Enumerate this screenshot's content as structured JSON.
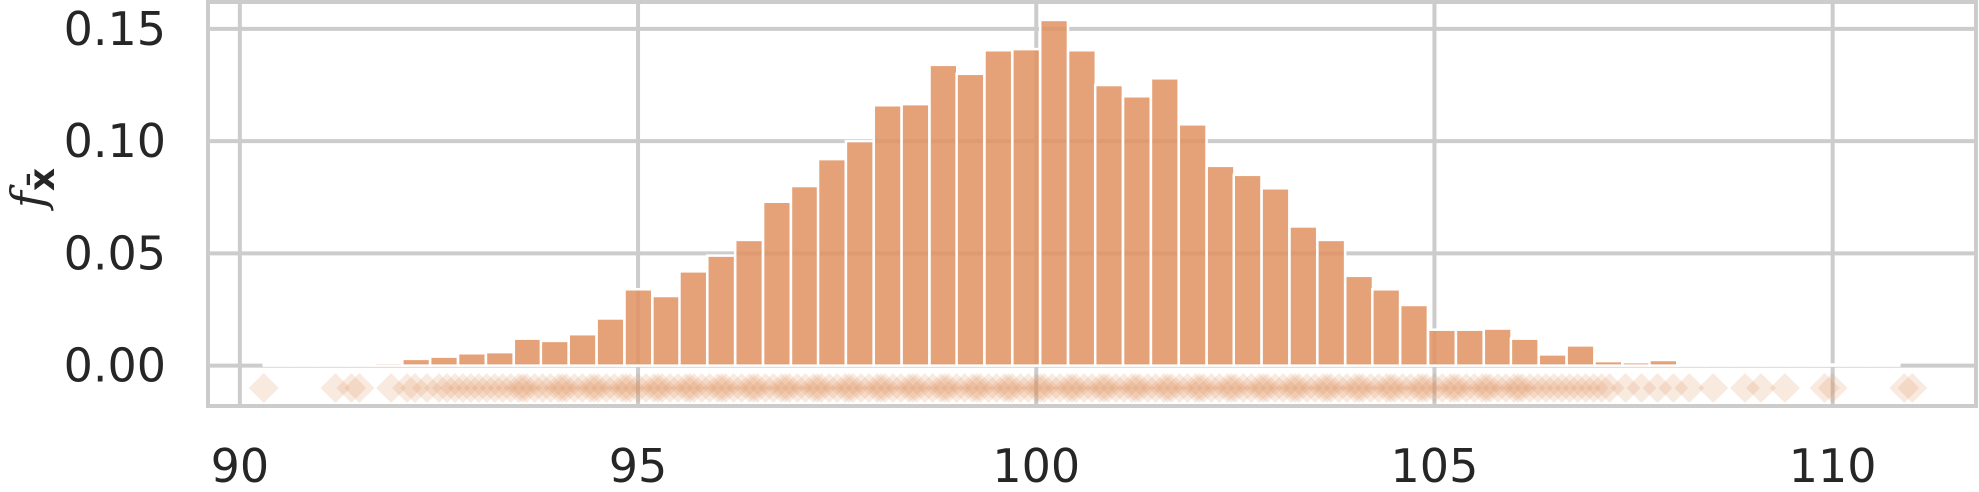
{
  "chart_data": {
    "type": "bar",
    "title": "",
    "xlabel": "",
    "ylabel": "f",
    "ylabel_subscript": "x̄",
    "xlim": [
      89.6,
      111.8
    ],
    "ylim": [
      -0.018,
      0.162
    ],
    "x_ticks": [
      90,
      95,
      100,
      105,
      110
    ],
    "y_ticks": [
      0.0,
      0.05,
      0.1,
      0.15
    ],
    "x_tick_labels": [
      "90",
      "95",
      "100",
      "105",
      "110"
    ],
    "y_tick_labels": [
      "0.00",
      "0.05",
      "0.10",
      "0.15"
    ],
    "grid": true,
    "colors": {
      "bar": "#e0915f",
      "marker": "#de8a55",
      "grid": "#cccccc",
      "text": "#262626"
    },
    "histogram": {
      "bin_width": 0.348,
      "bins": [
        {
          "x0": 90.3,
          "value": 0.0005
        },
        {
          "x0": 90.65,
          "value": 0.0005
        },
        {
          "x0": 91.0,
          "value": 0.0005
        },
        {
          "x0": 91.35,
          "value": 0.0005
        },
        {
          "x0": 91.7,
          "value": 0.0012
        },
        {
          "x0": 92.04,
          "value": 0.003
        },
        {
          "x0": 92.39,
          "value": 0.004
        },
        {
          "x0": 92.74,
          "value": 0.0055
        },
        {
          "x0": 93.09,
          "value": 0.006
        },
        {
          "x0": 93.44,
          "value": 0.012
        },
        {
          "x0": 93.78,
          "value": 0.011
        },
        {
          "x0": 94.13,
          "value": 0.014
        },
        {
          "x0": 94.48,
          "value": 0.021
        },
        {
          "x0": 94.83,
          "value": 0.034
        },
        {
          "x0": 95.18,
          "value": 0.031
        },
        {
          "x0": 95.52,
          "value": 0.042
        },
        {
          "x0": 95.87,
          "value": 0.049
        },
        {
          "x0": 96.22,
          "value": 0.056
        },
        {
          "x0": 96.57,
          "value": 0.073
        },
        {
          "x0": 96.92,
          "value": 0.08
        },
        {
          "x0": 97.26,
          "value": 0.092
        },
        {
          "x0": 97.61,
          "value": 0.1
        },
        {
          "x0": 97.96,
          "value": 0.116
        },
        {
          "x0": 98.31,
          "value": 0.1165
        },
        {
          "x0": 98.66,
          "value": 0.134
        },
        {
          "x0": 99.0,
          "value": 0.13
        },
        {
          "x0": 99.35,
          "value": 0.1405
        },
        {
          "x0": 99.7,
          "value": 0.141
        },
        {
          "x0": 100.05,
          "value": 0.154
        },
        {
          "x0": 100.4,
          "value": 0.1405
        },
        {
          "x0": 100.74,
          "value": 0.125
        },
        {
          "x0": 101.09,
          "value": 0.12
        },
        {
          "x0": 101.44,
          "value": 0.128
        },
        {
          "x0": 101.79,
          "value": 0.1075
        },
        {
          "x0": 102.14,
          "value": 0.089
        },
        {
          "x0": 102.48,
          "value": 0.085
        },
        {
          "x0": 102.83,
          "value": 0.079
        },
        {
          "x0": 103.18,
          "value": 0.062
        },
        {
          "x0": 103.53,
          "value": 0.056
        },
        {
          "x0": 103.88,
          "value": 0.04
        },
        {
          "x0": 104.22,
          "value": 0.034
        },
        {
          "x0": 104.57,
          "value": 0.027
        },
        {
          "x0": 104.92,
          "value": 0.016
        },
        {
          "x0": 105.27,
          "value": 0.016
        },
        {
          "x0": 105.62,
          "value": 0.0165
        },
        {
          "x0": 105.96,
          "value": 0.012
        },
        {
          "x0": 106.31,
          "value": 0.005
        },
        {
          "x0": 106.66,
          "value": 0.009
        },
        {
          "x0": 107.01,
          "value": 0.002
        },
        {
          "x0": 107.36,
          "value": 0.0015
        },
        {
          "x0": 107.7,
          "value": 0.0025
        },
        {
          "x0": 108.05,
          "value": 0.0005
        },
        {
          "x0": 108.4,
          "value": 0.0005
        },
        {
          "x0": 108.75,
          "value": 0.0005
        },
        {
          "x0": 109.1,
          "value": 0.0005
        },
        {
          "x0": 109.44,
          "value": 0.0005
        },
        {
          "x0": 109.79,
          "value": 0.0005
        },
        {
          "x0": 110.14,
          "value": 0.0005
        },
        {
          "x0": 110.49,
          "value": 0.0005
        }
      ]
    },
    "rug": {
      "y": -0.01,
      "marker": "diamond",
      "opacity": 0.18,
      "x": [
        90.3,
        91.2,
        91.4,
        91.5,
        91.9,
        92.1,
        92.2,
        92.35,
        92.5,
        92.6,
        92.7,
        92.8,
        92.9,
        93.0,
        93.1,
        93.2,
        93.3,
        93.4,
        93.5,
        93.55,
        93.6,
        93.7,
        93.8,
        93.9,
        94.0,
        94.05,
        94.1,
        94.2,
        94.3,
        94.4,
        94.45,
        94.5,
        94.6,
        94.7,
        94.8,
        94.85,
        94.9,
        95.0,
        95.1,
        95.2,
        95.25,
        95.3,
        95.4,
        95.5,
        95.6,
        95.65,
        95.7,
        95.8,
        95.9,
        96.0,
        96.05,
        96.1,
        96.2,
        96.3,
        96.4,
        96.45,
        96.5,
        96.6,
        96.7,
        96.8,
        96.85,
        96.9,
        97.0,
        97.1,
        97.2,
        97.25,
        97.3,
        97.4,
        97.5,
        97.6,
        97.65,
        97.7,
        97.8,
        97.9,
        98.0,
        98.05,
        98.1,
        98.2,
        98.3,
        98.4,
        98.45,
        98.5,
        98.6,
        98.7,
        98.8,
        98.85,
        98.9,
        99.0,
        99.1,
        99.2,
        99.25,
        99.3,
        99.4,
        99.5,
        99.6,
        99.65,
        99.7,
        99.8,
        99.9,
        100.0,
        100.05,
        100.1,
        100.2,
        100.3,
        100.4,
        100.45,
        100.5,
        100.6,
        100.7,
        100.8,
        100.85,
        100.9,
        101.0,
        101.1,
        101.2,
        101.25,
        101.3,
        101.4,
        101.5,
        101.6,
        101.65,
        101.7,
        101.8,
        101.9,
        102.0,
        102.05,
        102.1,
        102.2,
        102.3,
        102.4,
        102.45,
        102.5,
        102.6,
        102.7,
        102.8,
        102.85,
        102.9,
        103.0,
        103.1,
        103.2,
        103.25,
        103.3,
        103.4,
        103.5,
        103.6,
        103.65,
        103.7,
        103.8,
        103.9,
        104.0,
        104.05,
        104.1,
        104.2,
        104.3,
        104.4,
        104.45,
        104.5,
        104.6,
        104.7,
        104.8,
        104.85,
        104.9,
        105.0,
        105.1,
        105.2,
        105.25,
        105.3,
        105.4,
        105.5,
        105.6,
        105.65,
        105.7,
        105.8,
        105.9,
        106.0,
        106.05,
        106.1,
        106.2,
        106.3,
        106.4,
        106.5,
        106.6,
        106.7,
        106.8,
        106.9,
        107.0,
        107.1,
        107.2,
        107.4,
        107.6,
        107.8,
        108.0,
        108.2,
        108.5,
        108.9,
        109.1,
        109.4,
        109.9,
        110.0,
        110.9,
        111.0
      ]
    }
  }
}
